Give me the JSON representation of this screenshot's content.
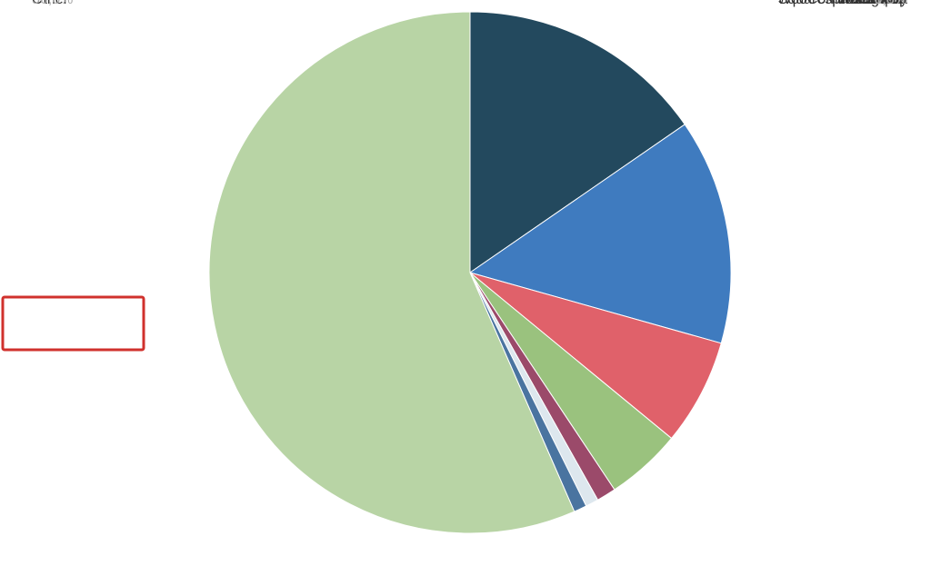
{
  "chart_data": {
    "type": "pie",
    "categories": [
      "Shopify",
      "WooCommerce C…",
      "Wix Stores",
      "Squarespace Add…",
      "PrestaShop",
      "Zen Cart",
      "Magento",
      "Other"
    ],
    "values": [
      15.4,
      14.0,
      6.6,
      4.7,
      1.2,
      0.8,
      0.8,
      56.6
    ],
    "value_labels": [
      "15,4%",
      "14,0%",
      "6,6%",
      "4,7%",
      "1,2%",
      "0,8%",
      "0,8%",
      "56,6%"
    ],
    "colors": [
      "#23495e",
      "#3f7bbf",
      "#e0616a",
      "#9ac27e",
      "#9b4a6a",
      "#dde7ee",
      "#4a74a0",
      "#b8d4a5"
    ]
  }
}
